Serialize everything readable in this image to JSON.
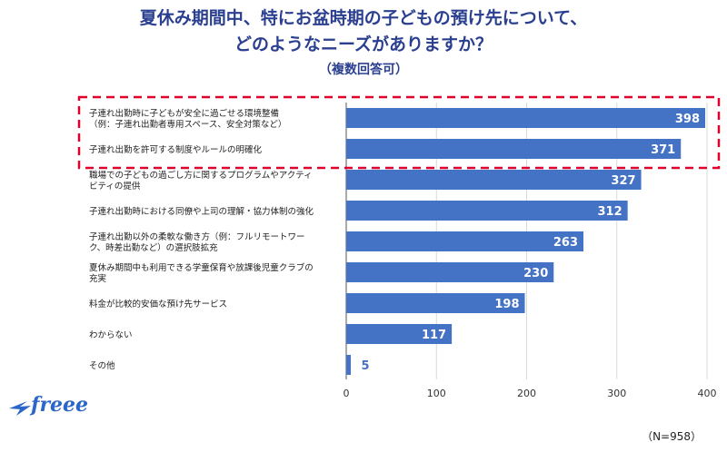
{
  "title": {
    "line1": "夏休み期間中、特にお盆時期の子どもの預け先について、",
    "line2": "どのようなニーズがありますか？",
    "subtitle": "（複数回答可）"
  },
  "note": "（N=958）",
  "logo": {
    "text": "freee"
  },
  "colors": {
    "bar": "#4472c4",
    "highlight": "#e0002a",
    "title": "#2a3f8f"
  },
  "chart_data": {
    "type": "bar",
    "orientation": "horizontal",
    "categories": [
      [
        "子連れ出勤時に子どもが安全に過ごせる環境整備",
        "（例：子連れ出勤者専用スペース、安全対策など）"
      ],
      [
        "子連れ出勤を許可する制度やルールの明確化"
      ],
      [
        "職場での子どもの過ごし方に関するプログラムやアクティ",
        "ビティの提供"
      ],
      [
        "子連れ出勤時における同僚や上司の理解・協力体制の強化"
      ],
      [
        "子連れ出勤以外の柔軟な働き方（例：フルリモートワー",
        "ク、時差出勤など）の選択肢拡充"
      ],
      [
        "夏休み期間中も利用できる学童保育や放課後児童クラブの",
        "充実"
      ],
      [
        "料金が比較的安価な預け先サービス"
      ],
      [
        "わからない"
      ],
      [
        "その他"
      ]
    ],
    "values": [
      398,
      371,
      327,
      312,
      263,
      230,
      198,
      117,
      5
    ],
    "xlim": [
      0,
      400
    ],
    "xticks": [
      0,
      100,
      200,
      300,
      400
    ],
    "highlighted_rows": [
      0,
      1
    ],
    "grid": true
  }
}
